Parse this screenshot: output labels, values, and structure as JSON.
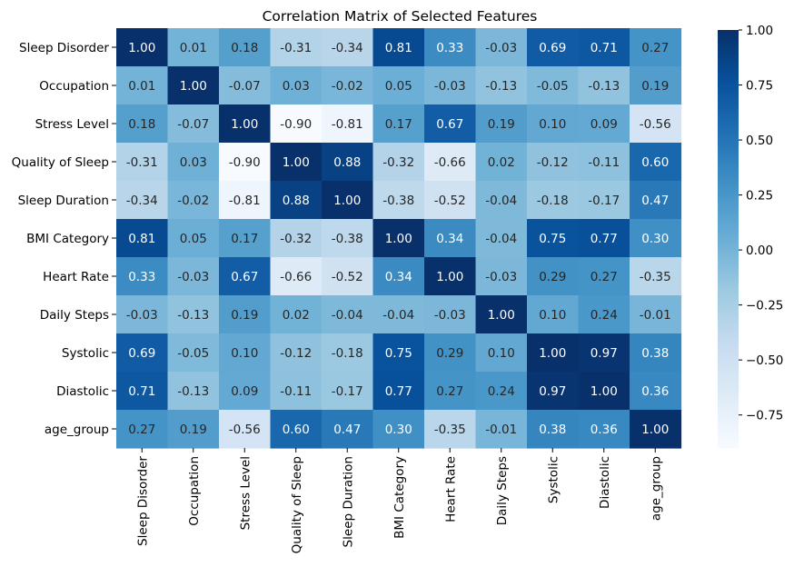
{
  "chart_data": {
    "type": "heatmap",
    "title": "Correlation Matrix of Selected Features",
    "rows": [
      "Sleep Disorder",
      "Occupation",
      "Stress Level",
      "Quality of Sleep",
      "Sleep Duration",
      "BMI Category",
      "Heart Rate",
      "Daily Steps",
      "Systolic",
      "Diastolic",
      "age_group"
    ],
    "columns": [
      "Sleep Disorder",
      "Occupation",
      "Stress Level",
      "Quality of Sleep",
      "Sleep Duration",
      "BMI Category",
      "Heart Rate",
      "Daily Steps",
      "Systolic",
      "Diastolic",
      "age_group"
    ],
    "values": [
      [
        1.0,
        0.01,
        0.18,
        -0.31,
        -0.34,
        0.81,
        0.33,
        -0.03,
        0.69,
        0.71,
        0.27
      ],
      [
        0.01,
        1.0,
        -0.07,
        0.03,
        -0.02,
        0.05,
        -0.03,
        -0.13,
        -0.05,
        -0.13,
        0.19
      ],
      [
        0.18,
        -0.07,
        1.0,
        -0.9,
        -0.81,
        0.17,
        0.67,
        0.19,
        0.1,
        0.09,
        -0.56
      ],
      [
        -0.31,
        0.03,
        -0.9,
        1.0,
        0.88,
        -0.32,
        -0.66,
        0.02,
        -0.12,
        -0.11,
        0.6
      ],
      [
        -0.34,
        -0.02,
        -0.81,
        0.88,
        1.0,
        -0.38,
        -0.52,
        -0.04,
        -0.18,
        -0.17,
        0.47
      ],
      [
        0.81,
        0.05,
        0.17,
        -0.32,
        -0.38,
        1.0,
        0.34,
        -0.04,
        0.75,
        0.77,
        0.3
      ],
      [
        0.33,
        -0.03,
        0.67,
        -0.66,
        -0.52,
        0.34,
        1.0,
        -0.03,
        0.29,
        0.27,
        -0.35
      ],
      [
        -0.03,
        -0.13,
        0.19,
        0.02,
        -0.04,
        -0.04,
        -0.03,
        1.0,
        0.1,
        0.24,
        -0.01
      ],
      [
        0.69,
        -0.05,
        0.1,
        -0.12,
        -0.18,
        0.75,
        0.29,
        0.1,
        1.0,
        0.97,
        0.38
      ],
      [
        0.71,
        -0.13,
        0.09,
        -0.11,
        -0.17,
        0.77,
        0.27,
        0.24,
        0.97,
        1.0,
        0.36
      ],
      [
        0.27,
        0.19,
        -0.56,
        0.6,
        0.47,
        0.3,
        -0.35,
        -0.01,
        0.38,
        0.36,
        1.0
      ]
    ],
    "color_range": [
      -0.9,
      1.0
    ],
    "colormap": "Blues",
    "colorbar_ticks": [
      "1.00",
      "0.75",
      "0.50",
      "0.25",
      "0.00",
      "−0.25",
      "−0.50",
      "−0.75"
    ],
    "colorbar_tick_values": [
      1.0,
      0.75,
      0.5,
      0.25,
      0.0,
      -0.25,
      -0.5,
      -0.75
    ],
    "annotation_format": "2f",
    "light_text_color": "#ffffff",
    "dark_text_color": "#262626"
  }
}
